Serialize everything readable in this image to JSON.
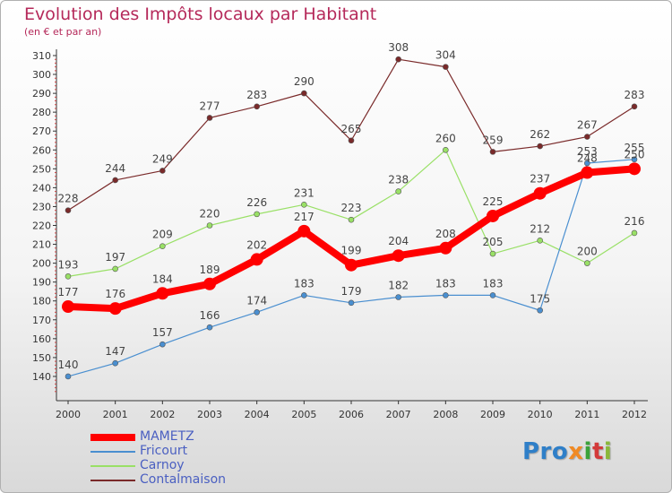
{
  "title": "Evolution des Impôts locaux par Habitant",
  "subtitle": "(en € et par an)",
  "logo": [
    "Pro",
    "x",
    "i",
    "t",
    "i"
  ],
  "chart_data": {
    "type": "line",
    "title": "Evolution des Impôts locaux par Habitant",
    "subtitle": "(en € et par an)",
    "xlabel": "",
    "ylabel": "",
    "x": [
      "2000",
      "2001",
      "2002",
      "2003",
      "2004",
      "2005",
      "2006",
      "2007",
      "2008",
      "2009",
      "2010",
      "2011",
      "2012"
    ],
    "ylim": [
      130,
      310
    ],
    "yticks": [
      140,
      150,
      160,
      170,
      180,
      190,
      200,
      210,
      220,
      230,
      240,
      250,
      260,
      270,
      280,
      290,
      300,
      310
    ],
    "grid": false,
    "legend_position": "bottom-left",
    "series": [
      {
        "name": "MAMETZ",
        "color": "#ff0000",
        "values": [
          177,
          176,
          184,
          189,
          202,
          217,
          199,
          204,
          208,
          225,
          237,
          248,
          250
        ]
      },
      {
        "name": "Fricourt",
        "color": "#4a8fd0",
        "values": [
          140,
          147,
          157,
          166,
          174,
          183,
          179,
          182,
          183,
          183,
          175,
          253,
          255
        ]
      },
      {
        "name": "Carnoy",
        "color": "#99e066",
        "values": [
          193,
          197,
          209,
          220,
          226,
          231,
          223,
          238,
          260,
          205,
          212,
          200,
          216
        ]
      },
      {
        "name": "Contalmaison",
        "color": "#7a2a2a",
        "values": [
          228,
          244,
          249,
          277,
          283,
          290,
          265,
          308,
          304,
          259,
          262,
          267,
          283
        ]
      }
    ]
  }
}
